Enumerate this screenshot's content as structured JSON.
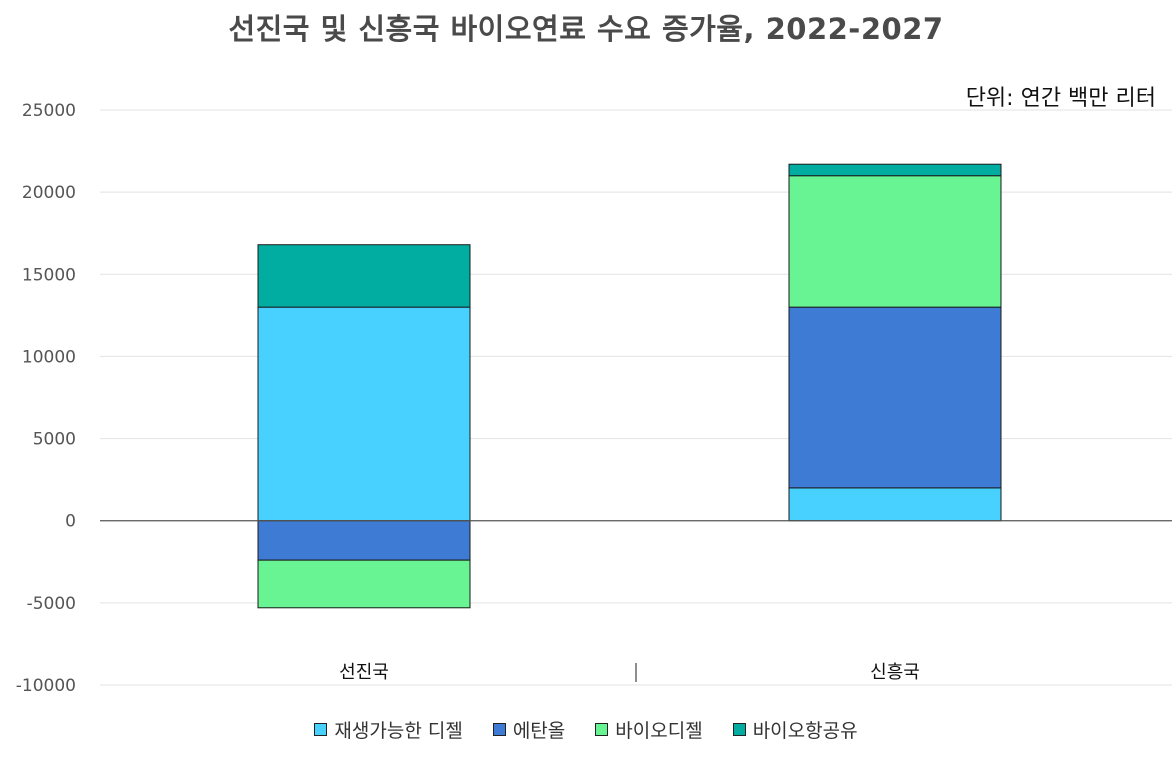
{
  "chart_data": {
    "type": "bar",
    "stacked": true,
    "title": "선진국 및 신흥국 바이오연료 수요 증가율, 2022-2027",
    "unit": "단위: 연간 백만 리터",
    "categories": [
      "선진국",
      "신흥국"
    ],
    "series": [
      {
        "name": "재생가능한 디젤",
        "color": "#48D1FF",
        "values": [
          13000,
          2000
        ]
      },
      {
        "name": "에탄올",
        "color": "#3E7BD4",
        "values": [
          -2400,
          11000
        ]
      },
      {
        "name": "바이오디젤",
        "color": "#68F492",
        "values": [
          -2900,
          8000
        ]
      },
      {
        "name": "바이오항공유",
        "color": "#00ADA0",
        "values": [
          3800,
          700
        ]
      }
    ],
    "ylim": [
      -10000,
      25000
    ],
    "yticks": [
      25000,
      20000,
      15000,
      10000,
      5000,
      0,
      -5000,
      -10000
    ],
    "grid": true,
    "legend_position": "bottom"
  }
}
